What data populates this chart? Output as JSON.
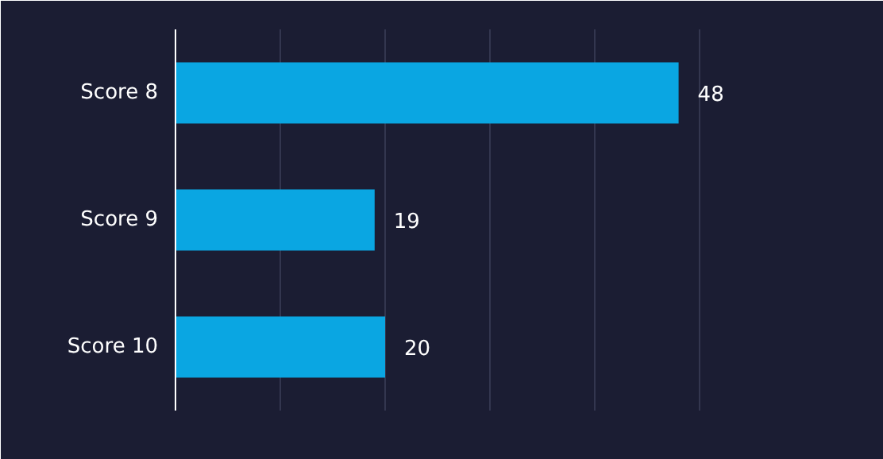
{
  "chart_data": {
    "type": "bar",
    "orientation": "horizontal",
    "categories": [
      "Score 8",
      "Score 9",
      "Score 10"
    ],
    "values": [
      48,
      19,
      20
    ],
    "color": "#0aa6e2",
    "data_labels": true,
    "xlim": [
      0,
      60
    ],
    "xticks": [
      {
        "value": 0,
        "label": null
      },
      {
        "value": 10,
        "label": null
      },
      {
        "value": 20,
        "label": null
      },
      {
        "value": 30,
        "label": null
      },
      {
        "value": 40,
        "label": null
      },
      {
        "value": 50,
        "label": null
      },
      {
        "value": 60,
        "label": null
      }
    ],
    "tick_labels": "y",
    "grid": "x"
  }
}
